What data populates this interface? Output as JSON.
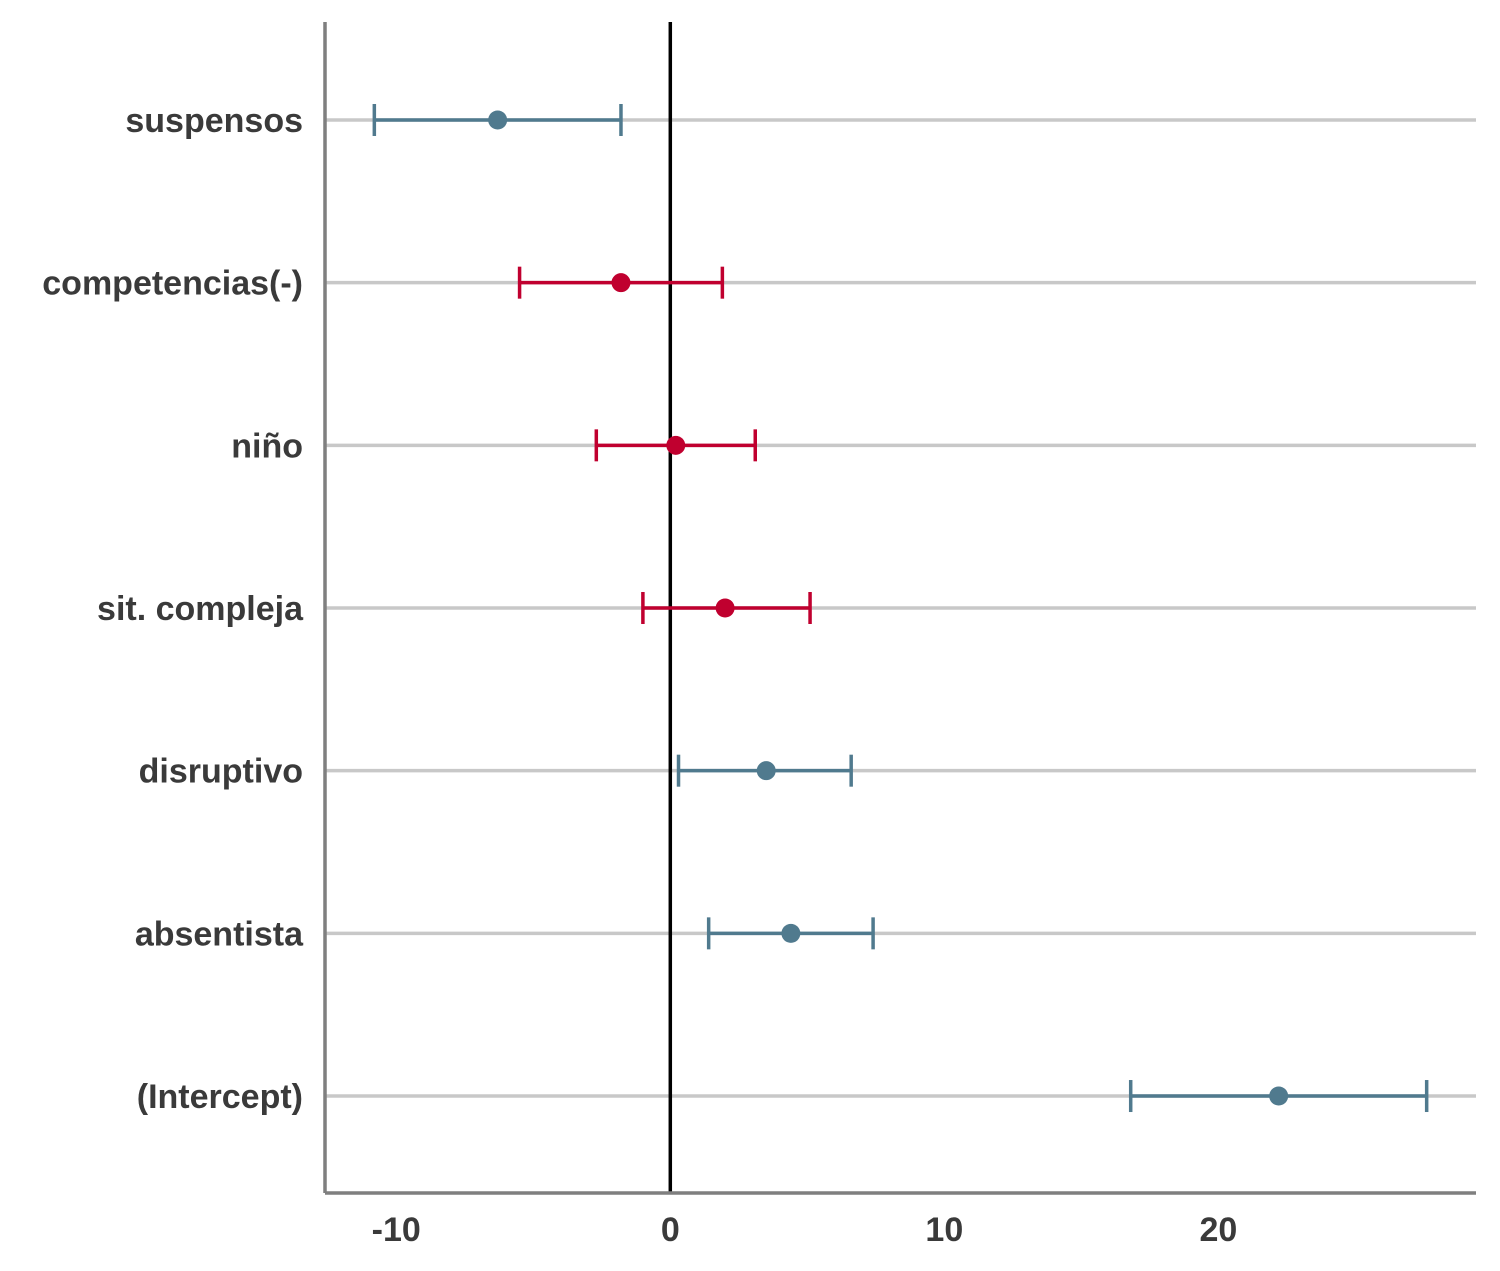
{
  "chart_data": {
    "type": "scatter",
    "subtype": "coefficient-plot",
    "title": "",
    "xlabel": "",
    "ylabel": "",
    "xlim": [
      -12.6,
      29.4
    ],
    "xticks": [
      -10,
      0,
      10,
      20
    ],
    "xtick_labels": [
      "-10",
      "0",
      "10",
      "20"
    ],
    "reference_line": 0,
    "grid": "horizontal",
    "legend": "none",
    "colors": {
      "positive": "#507a8e",
      "negative": "#c0002f",
      "reference": "#000000",
      "grid": "#c8c8c8",
      "axis": "#7f7f7f"
    },
    "terms": [
      {
        "label": "suspensos",
        "estimate": -6.3,
        "ci_low": -10.8,
        "ci_high": -1.8,
        "group": "positive"
      },
      {
        "label": "competencias(-)",
        "estimate": -1.8,
        "ci_low": -5.5,
        "ci_high": 1.9,
        "group": "negative"
      },
      {
        "label": "niño",
        "estimate": 0.2,
        "ci_low": -2.7,
        "ci_high": 3.1,
        "group": "negative"
      },
      {
        "label": "sit. compleja",
        "estimate": 2.0,
        "ci_low": -1.0,
        "ci_high": 5.1,
        "group": "negative"
      },
      {
        "label": "disruptivo",
        "estimate": 3.5,
        "ci_low": 0.3,
        "ci_high": 6.6,
        "group": "positive"
      },
      {
        "label": "absentista",
        "estimate": 4.4,
        "ci_low": 1.4,
        "ci_high": 7.4,
        "group": "positive"
      },
      {
        "label": "(Intercept)",
        "estimate": 22.2,
        "ci_low": 16.8,
        "ci_high": 27.6,
        "group": "positive"
      }
    ]
  }
}
